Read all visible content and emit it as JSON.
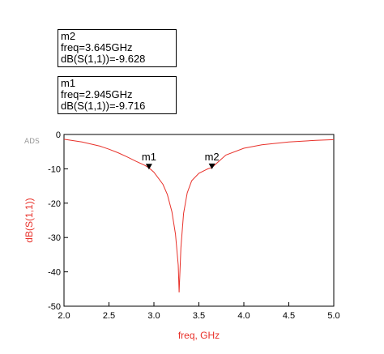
{
  "markers": [
    {
      "name": "m2",
      "freq_line": "freq=3.645GHz",
      "value_line": "dB(S(1,1))=-9.628"
    },
    {
      "name": "m1",
      "freq_line": "freq=2.945GHz",
      "value_line": "dB(S(1,1))=-9.716"
    }
  ],
  "watermark": "ADS",
  "chart_data": {
    "type": "line",
    "title": "",
    "xlabel": "freq, GHz",
    "ylabel": "dB(S(1,1))",
    "xlim": [
      2.0,
      5.0
    ],
    "ylim": [
      -50,
      0
    ],
    "xticks": [
      "2.0",
      "2.5",
      "3.0",
      "3.5",
      "4.0",
      "4.5",
      "5.0"
    ],
    "yticks": [
      "0",
      "-10",
      "-20",
      "-30",
      "-40",
      "-50"
    ],
    "grid": false,
    "series": [
      {
        "color": "#e8312a",
        "x": [
          2.0,
          2.2,
          2.4,
          2.5,
          2.6,
          2.7,
          2.8,
          2.9,
          2.945,
          3.0,
          3.1,
          3.15,
          3.2,
          3.24,
          3.27,
          3.28,
          3.3,
          3.33,
          3.37,
          3.42,
          3.5,
          3.6,
          3.645,
          3.8,
          4.0,
          4.2,
          4.5,
          4.8,
          5.0
        ],
        "y": [
          -1.4,
          -2.2,
          -3.4,
          -4.3,
          -5.3,
          -6.5,
          -7.8,
          -9.0,
          -9.716,
          -11.0,
          -14.5,
          -17.5,
          -22.5,
          -29.0,
          -38.0,
          -46.0,
          -33.0,
          -23.0,
          -17.0,
          -13.5,
          -11.3,
          -10.0,
          -9.628,
          -6.0,
          -4.0,
          -3.0,
          -2.2,
          -1.7,
          -1.5
        ]
      }
    ],
    "markers": [
      {
        "label": "m1",
        "x": 2.945,
        "y": -9.716
      },
      {
        "label": "m2",
        "x": 3.645,
        "y": -9.628
      }
    ]
  },
  "colors": {
    "curve": "#e8312a",
    "axis_label": "#e8312a",
    "axes": "#000000"
  }
}
